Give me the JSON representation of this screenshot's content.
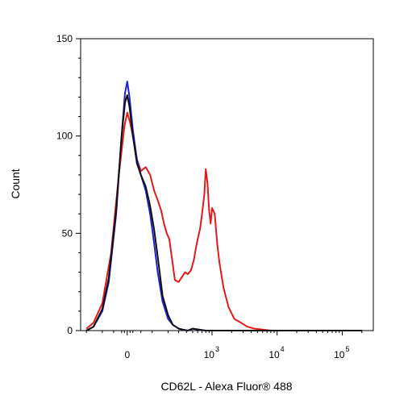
{
  "chart_data": {
    "type": "line",
    "title": "",
    "xlabel": "CD62L - Alexa Fluor® 488",
    "ylabel": "Count",
    "x_scale": "biexponential",
    "ylim": [
      0,
      150
    ],
    "y_ticks": [
      "0",
      "50",
      "100",
      "150"
    ],
    "x_ticks": [
      {
        "base": "0",
        "exp": ""
      },
      {
        "base": "10",
        "exp": "3"
      },
      {
        "base": "10",
        "exp": "4"
      },
      {
        "base": "10",
        "exp": "5"
      }
    ],
    "grid": false,
    "legend": "none",
    "series": [
      {
        "color": "#e31a1c",
        "x": [
          -200,
          -150,
          -100,
          -60,
          -30,
          -10,
          0,
          10,
          20,
          35,
          50,
          70,
          90,
          110,
          130,
          150,
          170,
          190,
          210,
          260,
          300,
          330,
          380,
          420,
          470,
          520,
          560,
          600,
          650,
          700,
          760,
          800,
          850,
          900,
          950,
          1000,
          1100,
          1200,
          1300,
          1500,
          1800,
          2200,
          2800,
          3500,
          4500,
          6000,
          8000,
          15000,
          50000,
          200000
        ],
        "y": [
          1,
          4,
          14,
          40,
          80,
          105,
          112,
          107,
          100,
          88,
          82,
          84,
          80,
          72,
          67,
          62,
          55,
          50,
          47,
          26,
          25,
          27,
          30,
          29,
          31,
          36,
          42,
          47,
          52,
          60,
          70,
          83,
          76,
          62,
          55,
          63,
          60,
          45,
          35,
          22,
          12,
          6,
          4,
          2,
          1,
          0.5,
          0,
          0,
          0,
          0
        ]
      },
      {
        "color": "#1f1fd6",
        "x": [
          -200,
          -150,
          -100,
          -70,
          -40,
          -20,
          -8,
          0,
          8,
          20,
          35,
          50,
          70,
          90,
          110,
          130,
          160,
          200,
          240,
          300,
          350,
          420,
          500,
          800,
          2000,
          200000
        ],
        "y": [
          0,
          2,
          10,
          25,
          60,
          100,
          122,
          128,
          120,
          103,
          88,
          80,
          72,
          60,
          45,
          30,
          15,
          6,
          3,
          1,
          0.5,
          0,
          1,
          0,
          0,
          0
        ]
      },
      {
        "color": "#111111",
        "x": [
          -200,
          -150,
          -100,
          -70,
          -40,
          -20,
          -8,
          0,
          8,
          20,
          35,
          50,
          70,
          90,
          110,
          130,
          160,
          200,
          240,
          300,
          350,
          420,
          500,
          800,
          2000,
          200000
        ],
        "y": [
          0,
          2,
          11,
          27,
          62,
          100,
          117,
          121,
          115,
          100,
          86,
          80,
          74,
          64,
          52,
          38,
          18,
          8,
          3,
          1,
          0.5,
          0,
          1,
          0,
          0,
          0
        ]
      }
    ]
  }
}
